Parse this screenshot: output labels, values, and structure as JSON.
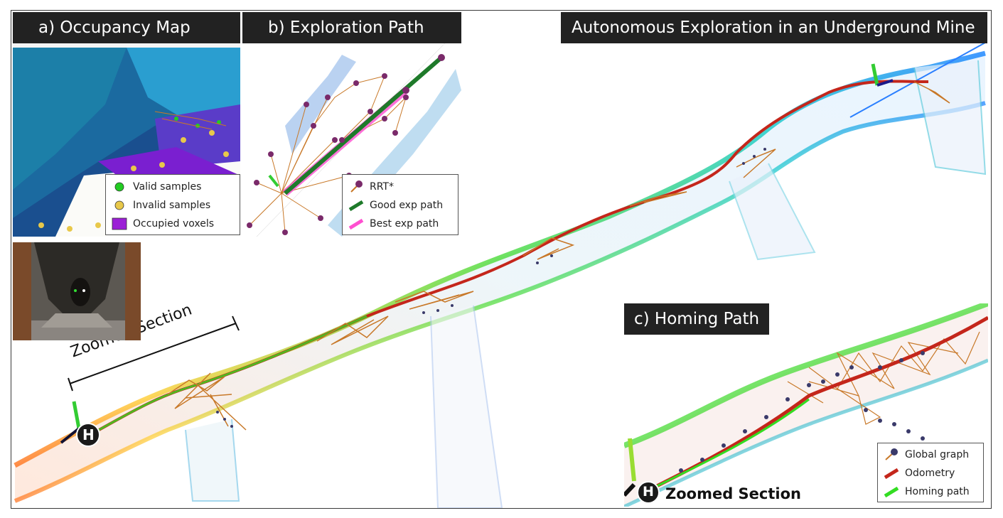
{
  "titles": {
    "panel_a": "a) Occupancy Map",
    "panel_b": "b) Exploration Path",
    "main": "Autonomous Exploration in an Underground Mine",
    "panel_c": "c) Homing Path"
  },
  "legend_a": [
    {
      "label": "Valid samples",
      "color": "#22cc22"
    },
    {
      "label": "Invalid samples",
      "color": "#e8c84a"
    },
    {
      "label": "Occupied voxels",
      "color": "#9b1fd6"
    }
  ],
  "legend_b": [
    {
      "label": "RRT*",
      "color": "#c87828"
    },
    {
      "label": "Good exp path",
      "color": "#1e7a2a"
    },
    {
      "label": "Best exp path",
      "color": "#ff4fd0"
    }
  ],
  "legend_c": [
    {
      "label": "Global graph",
      "color": "#c87828"
    },
    {
      "label": "Odometry",
      "color": "#c4261b"
    },
    {
      "label": "Homing path",
      "color": "#33dd22"
    }
  ],
  "zoom_label_main": "Zoomed Section",
  "zoom_label_c": "Zoomed Section",
  "home_marker": "H"
}
